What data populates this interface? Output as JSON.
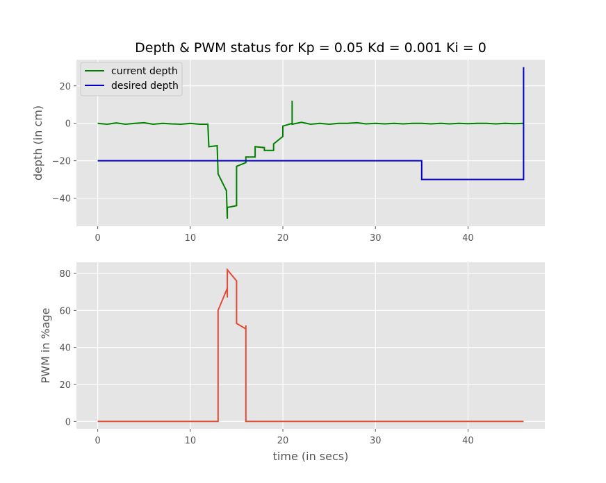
{
  "chart_data": [
    {
      "type": "line",
      "title": "Depth & PWM status for Kp = 0.05 Kd = 0.001 Ki = 0",
      "xlabel": "",
      "ylabel": "depth (in cm)",
      "xlim": [
        -2.3,
        48.3
      ],
      "ylim": [
        -55,
        34
      ],
      "xticks": [
        0,
        10,
        20,
        30,
        40
      ],
      "yticks": [
        20,
        0,
        -20,
        -40
      ],
      "ytick_labels": [
        "20",
        "0",
        "−20",
        "−40"
      ],
      "grid": true,
      "legend": "top-left",
      "series": [
        {
          "name": "current depth",
          "color": "#008000",
          "x": [
            0,
            1,
            2,
            3,
            4,
            5,
            6,
            7,
            8,
            9,
            10,
            11,
            11.9,
            12,
            12.9,
            13,
            13.9,
            14,
            14,
            15,
            15,
            16,
            16,
            17,
            17,
            18,
            18,
            19,
            19,
            20,
            20,
            21,
            21,
            21,
            22,
            23,
            24,
            25,
            26,
            27,
            28,
            29,
            30,
            31,
            32,
            33,
            34,
            35,
            36,
            37,
            38,
            39,
            40,
            41,
            42,
            43,
            44,
            45,
            46
          ],
          "y": [
            0,
            -0.5,
            0.2,
            -0.5,
            0,
            0.3,
            -0.5,
            0,
            -0.3,
            -0.5,
            0,
            -0.5,
            -0.5,
            -12.5,
            -12,
            -27,
            -36,
            -51,
            -45,
            -44,
            -23,
            -21,
            -18,
            -18,
            -12.5,
            -13,
            -14.5,
            -14.5,
            -11,
            -7,
            -1.5,
            0,
            12,
            -0.5,
            0.5,
            -0.5,
            0,
            -0.5,
            0,
            0,
            0.3,
            -0.3,
            0,
            -0.3,
            0,
            -0.3,
            0,
            0,
            -0.3,
            0,
            -0.3,
            0,
            -0.2,
            0,
            0,
            -0.3,
            0,
            -0.2,
            0
          ]
        },
        {
          "name": "desired depth",
          "color": "#0000cc",
          "x": [
            0,
            35,
            35,
            46,
            46
          ],
          "y": [
            -20,
            -20,
            -30,
            -30,
            30
          ]
        }
      ]
    },
    {
      "type": "line",
      "title": "",
      "xlabel": "time (in secs)",
      "ylabel": "PWM in %age",
      "xlim": [
        -2.3,
        48.3
      ],
      "ylim": [
        -4,
        86
      ],
      "xticks": [
        0,
        10,
        20,
        30,
        40
      ],
      "yticks": [
        80,
        60,
        40,
        20,
        0
      ],
      "grid": true,
      "series": [
        {
          "color": "#e24a33",
          "x": [
            0,
            13,
            13,
            14,
            14,
            14,
            15,
            15,
            16,
            16,
            16,
            16,
            46
          ],
          "y": [
            0,
            0,
            60,
            72,
            67,
            82,
            76,
            53,
            50,
            52,
            0,
            0,
            0
          ]
        }
      ]
    }
  ]
}
